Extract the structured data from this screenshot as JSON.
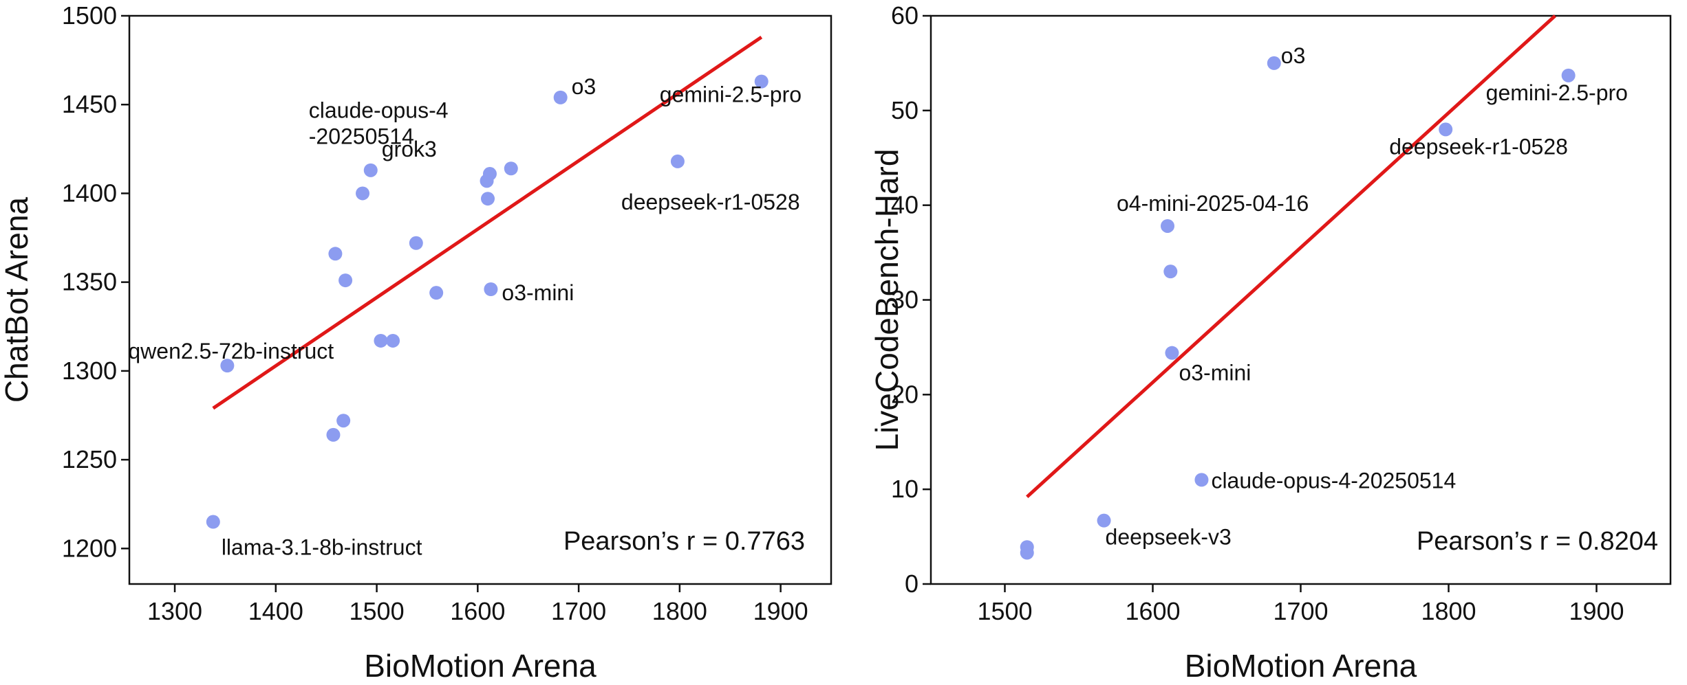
{
  "colors": {
    "point": "#8c9cf0",
    "fit": "#e01818",
    "axis": "#111111"
  },
  "chart_data": [
    {
      "type": "scatter",
      "xlabel": "BioMotion Arena",
      "ylabel": "ChatBot Arena",
      "xlim": [
        1255,
        1950
      ],
      "ylim": [
        1180,
        1500
      ],
      "xticks": [
        1300,
        1400,
        1500,
        1600,
        1700,
        1800,
        1900
      ],
      "yticks": [
        1200,
        1250,
        1300,
        1350,
        1400,
        1450,
        1500
      ],
      "annotation": "Pearson’s r = 0.7763",
      "fit_line": {
        "x": [
          1338,
          1881
        ],
        "y": [
          1279,
          1488
        ]
      },
      "points": [
        {
          "x": 1881,
          "y": 1463,
          "label": "gemini-2.5-pro"
        },
        {
          "x": 1682,
          "y": 1454,
          "label": "o3"
        },
        {
          "x": 1798,
          "y": 1418,
          "label": "deepseek-r1-0528"
        },
        {
          "x": 1633,
          "y": 1414,
          "label": "claude-opus-4\n-20250514"
        },
        {
          "x": 1612,
          "y": 1411,
          "label": ""
        },
        {
          "x": 1609,
          "y": 1407,
          "label": ""
        },
        {
          "x": 1610,
          "y": 1397,
          "label": ""
        },
        {
          "x": 1494,
          "y": 1413,
          "label": "grok3"
        },
        {
          "x": 1486,
          "y": 1400,
          "label": ""
        },
        {
          "x": 1539,
          "y": 1372,
          "label": ""
        },
        {
          "x": 1459,
          "y": 1366,
          "label": ""
        },
        {
          "x": 1469,
          "y": 1351,
          "label": ""
        },
        {
          "x": 1559,
          "y": 1344,
          "label": ""
        },
        {
          "x": 1613,
          "y": 1346,
          "label": "o3-mini"
        },
        {
          "x": 1504,
          "y": 1317,
          "label": ""
        },
        {
          "x": 1516,
          "y": 1317,
          "label": ""
        },
        {
          "x": 1352,
          "y": 1303,
          "label": "qwen2.5-72b-instruct"
        },
        {
          "x": 1467,
          "y": 1272,
          "label": ""
        },
        {
          "x": 1457,
          "y": 1264,
          "label": ""
        },
        {
          "x": 1338,
          "y": 1215,
          "label": "llama-3.1-8b-instruct"
        }
      ]
    },
    {
      "type": "scatter",
      "xlabel": "BioMotion Arena",
      "ylabel": "LiveCodeBench-Hard",
      "xlim": [
        1450,
        1950
      ],
      "ylim": [
        0,
        60
      ],
      "xticks": [
        1500,
        1600,
        1700,
        1800,
        1900
      ],
      "yticks": [
        0,
        10,
        20,
        30,
        40,
        50,
        60
      ],
      "annotation": "Pearson’s r = 0.8204",
      "fit_line": {
        "x": [
          1515,
          1872
        ],
        "y": [
          9.2,
          60
        ]
      },
      "points": [
        {
          "x": 1682,
          "y": 55,
          "label": "o3"
        },
        {
          "x": 1881,
          "y": 53.7,
          "label": "gemini-2.5-pro"
        },
        {
          "x": 1798,
          "y": 48,
          "label": "deepseek-r1-0528"
        },
        {
          "x": 1610,
          "y": 37.8,
          "label": "o4-mini-2025-04-16"
        },
        {
          "x": 1612,
          "y": 33,
          "label": ""
        },
        {
          "x": 1613,
          "y": 24.4,
          "label": "o3-mini"
        },
        {
          "x": 1633,
          "y": 11,
          "label": "claude-opus-4-20250514"
        },
        {
          "x": 1567,
          "y": 6.7,
          "label": "deepseek-v3"
        },
        {
          "x": 1515,
          "y": 3.9,
          "label": ""
        },
        {
          "x": 1515,
          "y": 3.3,
          "label": ""
        }
      ]
    }
  ]
}
